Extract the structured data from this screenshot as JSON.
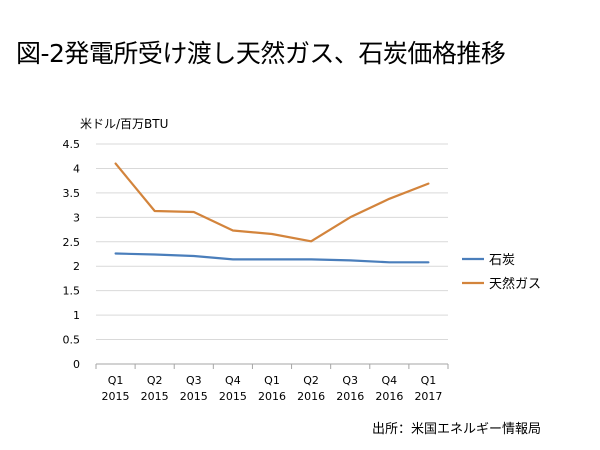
{
  "slide": {
    "title": "図-2発電所受け渡し天然ガス、石炭価格推移",
    "source": "出所：米国エネルギー情報局"
  },
  "chart_data": {
    "type": "line",
    "title": "図-2発電所受け渡し天然ガス、石炭価格推移",
    "ylabel": "米ドル/百万BTU",
    "xlabel": "",
    "categories": [
      [
        "Q1",
        "2015"
      ],
      [
        "Q2",
        "2015"
      ],
      [
        "Q3",
        "2015"
      ],
      [
        "Q4",
        "2015"
      ],
      [
        "Q1",
        "2016"
      ],
      [
        "Q2",
        "2016"
      ],
      [
        "Q3",
        "2016"
      ],
      [
        "Q4",
        "2016"
      ],
      [
        "Q1",
        "2017"
      ]
    ],
    "ylim": [
      0,
      4.5
    ],
    "yticks": [
      "0",
      "0.5",
      "1",
      "1.5",
      "2",
      "2.5",
      "3",
      "3.5",
      "4",
      "4.5"
    ],
    "grid": true,
    "legend_position": "right",
    "series": [
      {
        "name": "石炭",
        "color": "#4a7ebb",
        "values": [
          2.26,
          2.24,
          2.21,
          2.14,
          2.14,
          2.14,
          2.12,
          2.08,
          2.08
        ]
      },
      {
        "name": "天然ガス",
        "color": "#d3843c",
        "values": [
          4.1,
          3.13,
          3.11,
          2.73,
          2.66,
          2.51,
          3.0,
          3.38,
          3.69
        ]
      }
    ]
  }
}
